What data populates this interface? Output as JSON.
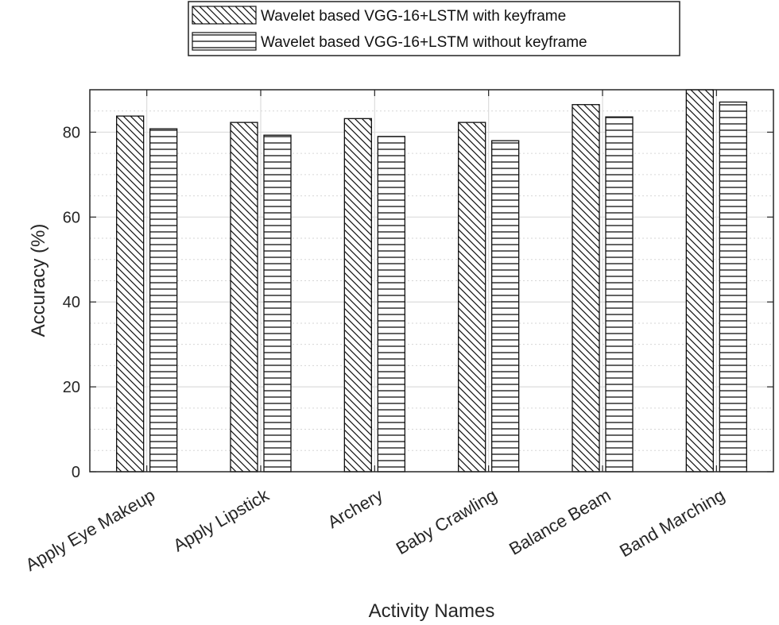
{
  "chart_data": {
    "type": "bar",
    "title": "",
    "xlabel": "Activity Names",
    "ylabel": "Accuracy (%)",
    "categories": [
      "Apply Eye Makeup",
      "Apply Lipstick",
      "Archery",
      "Baby Crawling",
      "Balance Beam",
      "Band Marching"
    ],
    "series": [
      {
        "name": "Wavelet based VGG-16+LSTM with keyframe",
        "values": [
          83.8,
          82.3,
          83.2,
          82.3,
          86.5,
          90.0
        ],
        "pattern": "diagonal"
      },
      {
        "name": "Wavelet based VGG-16+LSTM without keyframe",
        "values": [
          80.8,
          79.3,
          79.0,
          78.0,
          83.6,
          87.1
        ],
        "pattern": "horizontal"
      }
    ],
    "ylim": [
      0,
      90
    ],
    "yticks": [
      0,
      20,
      40,
      60,
      80
    ],
    "grid": true,
    "minor_grid": true,
    "legend_position": "top-center"
  }
}
